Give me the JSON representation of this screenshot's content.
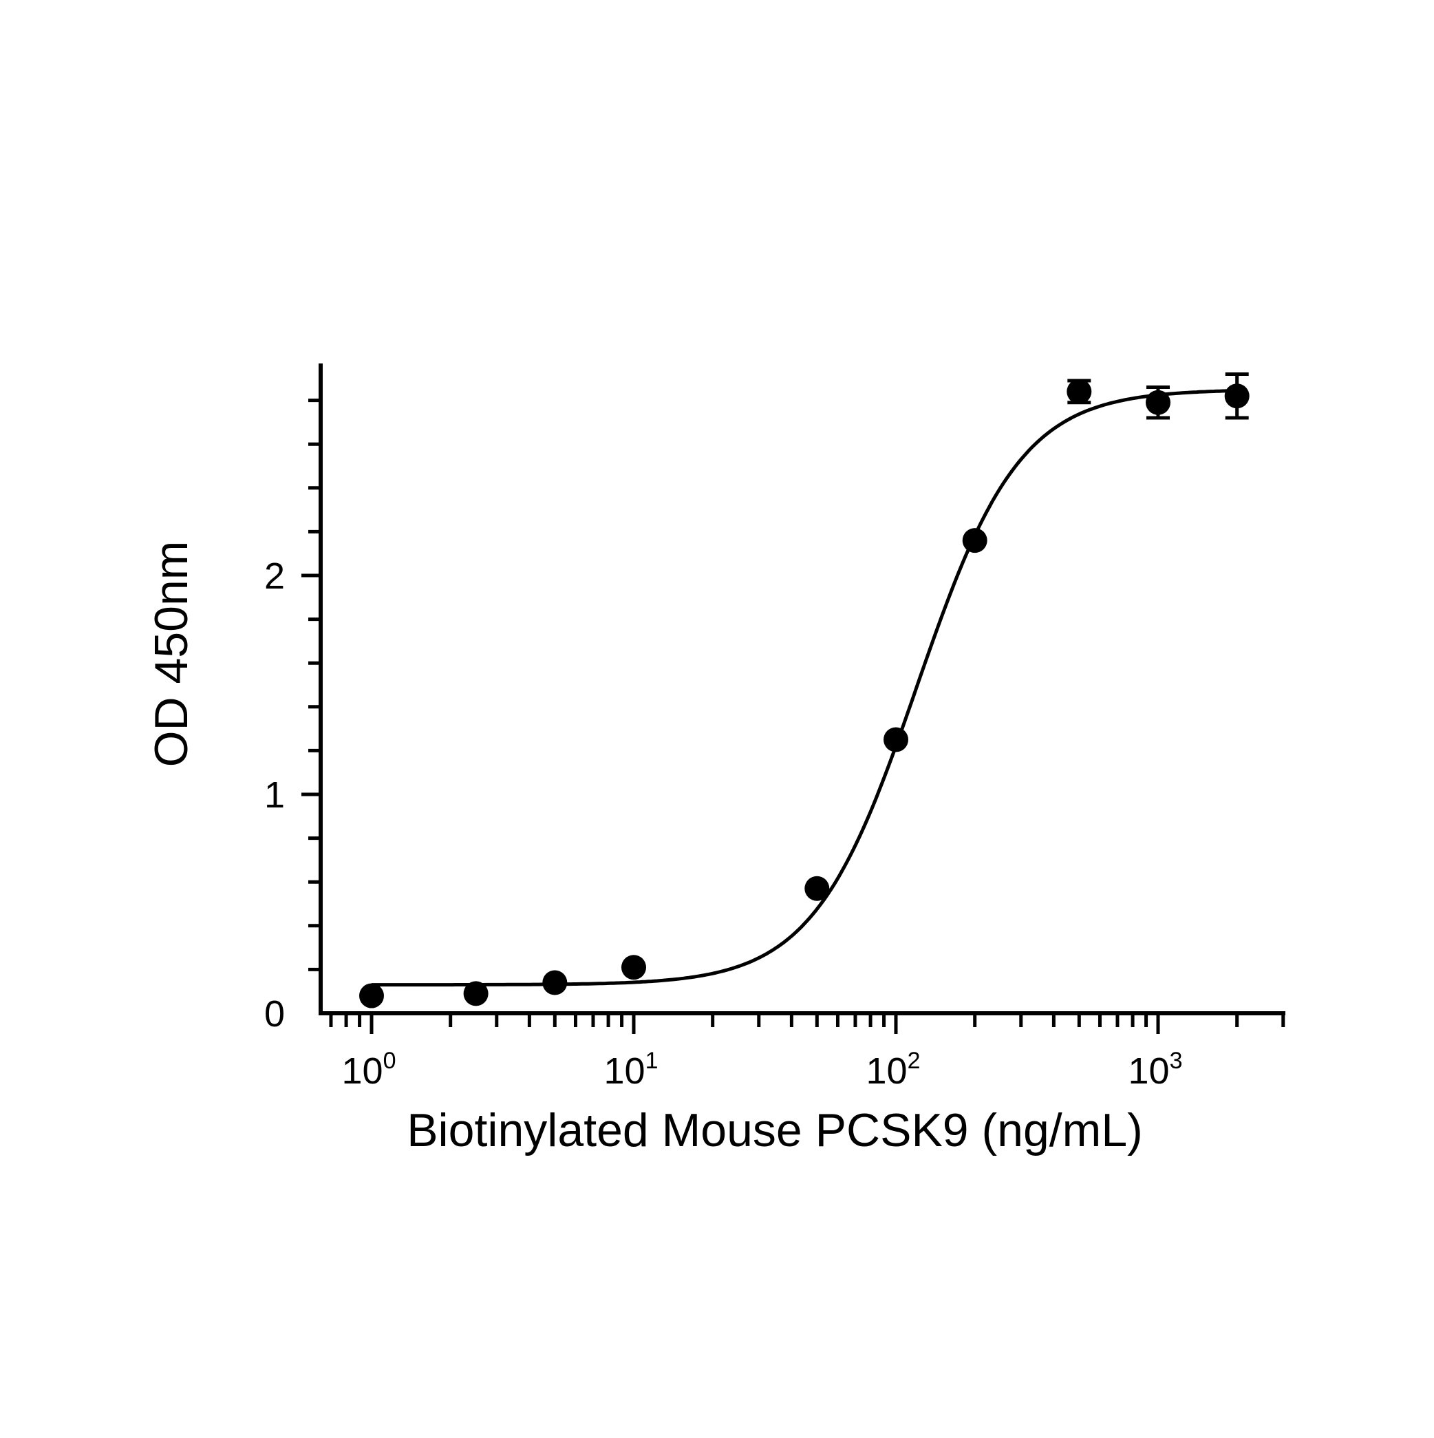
{
  "chart_data": {
    "type": "scatter",
    "title": "",
    "xlabel": "Biotinylated Mouse PCSK9 (ng/mL)",
    "ylabel": "OD 450nm",
    "x_scale": "log10",
    "xlim": [
      0.65,
      3100
    ],
    "ylim": [
      0,
      2.95
    ],
    "grid": false,
    "legend": "none",
    "x_tick_labels": [
      {
        "value": 1,
        "base": "10",
        "exponent": "0"
      },
      {
        "value": 10,
        "base": "10",
        "exponent": "1"
      },
      {
        "value": 100,
        "base": "10",
        "exponent": "2"
      },
      {
        "value": 1000,
        "base": "10",
        "exponent": "3"
      }
    ],
    "y_tick_labels": [
      {
        "value": 0,
        "label": "0"
      },
      {
        "value": 1,
        "label": "1"
      },
      {
        "value": 2,
        "label": "2"
      }
    ],
    "series": [
      {
        "points": [
          {
            "x": 1,
            "y": 0.08,
            "err": 0
          },
          {
            "x": 2.5,
            "y": 0.09,
            "err": 0
          },
          {
            "x": 5,
            "y": 0.14,
            "err": 0
          },
          {
            "x": 10,
            "y": 0.21,
            "err": 0
          },
          {
            "x": 50,
            "y": 0.57,
            "err": 0
          },
          {
            "x": 100,
            "y": 1.25,
            "err": 0
          },
          {
            "x": 200,
            "y": 2.16,
            "err": 0
          },
          {
            "x": 500,
            "y": 2.84,
            "err": 0.05
          },
          {
            "x": 1000,
            "y": 2.79,
            "err": 0.07
          },
          {
            "x": 2000,
            "y": 2.82,
            "err": 0.1
          }
        ],
        "fit_curve": {
          "model": "4PL",
          "bottom": 0.13,
          "top": 2.85,
          "ec50": 120,
          "hill": 2.2,
          "x_from": 1,
          "x_to": 2000
        }
      }
    ],
    "colors": {
      "axis": "#000000",
      "marker": "#000000",
      "curve": "#000000"
    }
  }
}
